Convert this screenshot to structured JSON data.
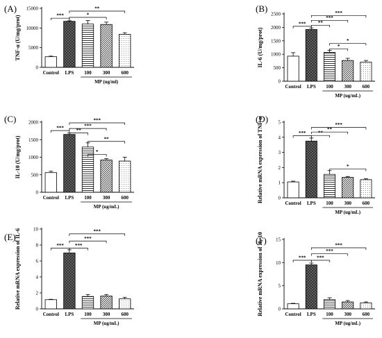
{
  "chart_data": [
    {
      "type": "bar",
      "panel": "(A)",
      "ylabel": "TNF-α (U/mg/prot)",
      "ylim": [
        0,
        15000
      ],
      "yticks": [
        "0",
        "5000",
        "10000",
        "15000"
      ],
      "categories": [
        "Control",
        "LPS",
        "100",
        "300",
        "600"
      ],
      "group_label": "MP (ug/ml)",
      "values": [
        2700,
        11700,
        11000,
        10900,
        8400
      ],
      "errors": [
        150,
        150,
        900,
        600,
        400
      ],
      "comparisons": [
        {
          "from": 0,
          "to": 1,
          "label": "***",
          "y": 12500
        },
        {
          "from": 1,
          "to": 4,
          "label": "**",
          "y": 14300
        },
        {
          "from": 1,
          "to": 3,
          "label": "*",
          "y": 12700
        }
      ]
    },
    {
      "type": "bar",
      "panel": "(B)",
      "ylabel": "IL-6 (U/mg/prot)",
      "ylim": [
        0,
        2500
      ],
      "yticks": [
        "0",
        "500",
        "1000",
        "1500",
        "2000",
        "2500"
      ],
      "categories": [
        "Control",
        "LPS",
        "100",
        "300",
        "600"
      ],
      "group_label": "MP (ug/mL)",
      "values": [
        930,
        1920,
        1070,
        770,
        710
      ],
      "errors": [
        130,
        60,
        80,
        80,
        60
      ],
      "comparisons": [
        {
          "from": 0,
          "to": 1,
          "label": "***",
          "y": 2040
        },
        {
          "from": 1,
          "to": 4,
          "label": "***",
          "y": 2440
        },
        {
          "from": 1,
          "to": 3,
          "label": "***",
          "y": 2260
        },
        {
          "from": 1,
          "to": 2,
          "label": "**",
          "y": 2080
        },
        {
          "from": 2,
          "to": 4,
          "label": "*",
          "y": 1400
        },
        {
          "from": 2,
          "to": 3,
          "label": "*",
          "y": 1200
        }
      ]
    },
    {
      "type": "bar",
      "panel": "(C)",
      "ylabel": "IL-10 (U/mg/prot)",
      "ylim": [
        0,
        2000
      ],
      "yticks": [
        "0",
        "500",
        "1000",
        "1500",
        "2000"
      ],
      "categories": [
        "Control",
        "LPS",
        "100",
        "300",
        "600"
      ],
      "group_label": "MP (ug/mL)",
      "values": [
        560,
        1650,
        1290,
        920,
        890
      ],
      "errors": [
        40,
        40,
        120,
        40,
        110
      ],
      "comparisons": [
        {
          "from": 0,
          "to": 1,
          "label": "***",
          "y": 1760
        },
        {
          "from": 1,
          "to": 4,
          "label": "***",
          "y": 1980
        },
        {
          "from": 1,
          "to": 3,
          "label": "***",
          "y": 1820
        },
        {
          "from": 1,
          "to": 2,
          "label": "**",
          "y": 1690
        },
        {
          "from": 2,
          "to": 4,
          "label": "**",
          "y": 1450
        },
        {
          "from": 2,
          "to": 3,
          "label": "*",
          "y": 1080
        }
      ]
    },
    {
      "type": "bar",
      "panel": "(D)",
      "ylabel": "Relative mRNA expression of TNF-α",
      "ylim": [
        0,
        5
      ],
      "yticks": [
        "0",
        "1",
        "2",
        "3",
        "4",
        "5"
      ],
      "categories": [
        "Control",
        "LPS",
        "100",
        "300",
        "600"
      ],
      "group_label": "MP (ug/mL)",
      "values": [
        1.05,
        3.75,
        1.55,
        1.35,
        1.2
      ],
      "errors": [
        0.05,
        0.2,
        0.25,
        0.06,
        0.06
      ],
      "comparisons": [
        {
          "from": 0,
          "to": 1,
          "label": "***",
          "y": 4.1
        },
        {
          "from": 1,
          "to": 4,
          "label": "***",
          "y": 4.65
        },
        {
          "from": 1,
          "to": 3,
          "label": "**",
          "y": 4.35
        },
        {
          "from": 1,
          "to": 2,
          "label": "**",
          "y": 4.12
        },
        {
          "from": 2,
          "to": 4,
          "label": "*",
          "y": 1.9
        }
      ]
    },
    {
      "type": "bar",
      "panel": "(E)",
      "ylabel": "Relative mRNA expression of IL-6",
      "ylim": [
        0,
        10
      ],
      "yticks": [
        "0",
        "2",
        "4",
        "6",
        "8",
        "10"
      ],
      "categories": [
        "Control",
        "LPS",
        "100",
        "300",
        "600"
      ],
      "group_label": "MP (ug/mL)",
      "values": [
        1.15,
        7.0,
        1.55,
        1.6,
        1.25
      ],
      "errors": [
        0.05,
        0.4,
        0.25,
        0.2,
        0.2
      ],
      "comparisons": [
        {
          "from": 0,
          "to": 1,
          "label": "***",
          "y": 7.6
        },
        {
          "from": 1,
          "to": 4,
          "label": "***",
          "y": 9.4
        },
        {
          "from": 1,
          "to": 3,
          "label": "***",
          "y": 8.5
        },
        {
          "from": 1,
          "to": 2,
          "label": "***",
          "y": 7.6
        }
      ]
    },
    {
      "type": "bar",
      "panel": "(F)",
      "ylabel": "Relative mRNA expression of IL-10",
      "ylim": [
        0,
        15
      ],
      "yticks": [
        "0",
        "5",
        "10",
        "15"
      ],
      "categories": [
        "Control",
        "LPS",
        "100",
        "300",
        "600"
      ],
      "group_label": "MP (ug/mL)",
      "values": [
        1.1,
        9.5,
        2.0,
        1.5,
        1.3
      ],
      "errors": [
        0.1,
        0.4,
        0.4,
        0.3,
        0.2
      ],
      "comparisons": [
        {
          "from": 0,
          "to": 1,
          "label": "***",
          "y": 10.5
        },
        {
          "from": 1,
          "to": 4,
          "label": "***",
          "y": 13.2
        },
        {
          "from": 1,
          "to": 3,
          "label": "***",
          "y": 11.9
        },
        {
          "from": 1,
          "to": 2,
          "label": "***",
          "y": 10.5
        }
      ]
    }
  ]
}
